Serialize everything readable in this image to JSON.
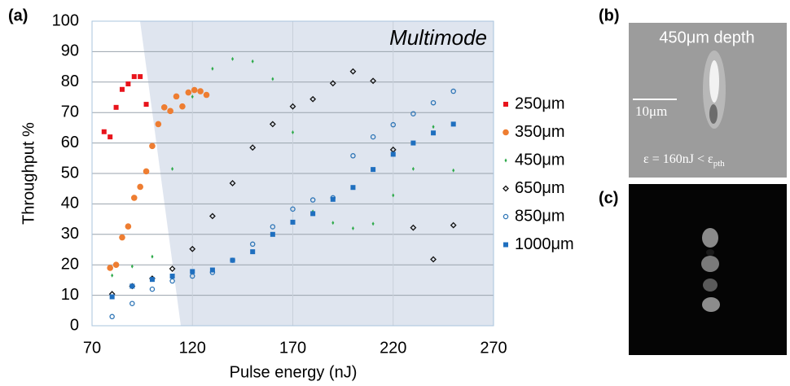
{
  "chart_data": {
    "type": "scatter",
    "panel_label": "(a)",
    "annotation": "Multimode",
    "xlabel": "Pulse energy (nJ)",
    "ylabel": "Throughput %",
    "xlim": [
      70,
      270
    ],
    "xticks": [
      70,
      120,
      170,
      220,
      270
    ],
    "ylim": [
      0,
      100
    ],
    "yticks": [
      0,
      10,
      20,
      30,
      40,
      50,
      60,
      70,
      80,
      90,
      100
    ],
    "grid": true,
    "legend": "right",
    "series": [
      {
        "name": "250μm",
        "color": "#e8141c",
        "marker": "square",
        "x": [
          76,
          79,
          82,
          85,
          88,
          91,
          94,
          97
        ],
        "values": [
          63.7,
          62,
          71.7,
          77.6,
          79.4,
          81.8,
          81.8,
          72.7
        ]
      },
      {
        "name": "350μm",
        "color": "#ee7d31",
        "marker": "circle",
        "x": [
          79,
          82,
          85,
          88,
          91,
          94,
          97,
          100,
          103,
          106,
          109,
          112,
          115,
          118,
          121,
          124,
          127
        ],
        "values": [
          19,
          20,
          29,
          32.6,
          42,
          45.6,
          50.7,
          59,
          66.2,
          71.7,
          70.5,
          75.3,
          72,
          76.6,
          77.4,
          77,
          75.8
        ]
      },
      {
        "name": "450μm",
        "color": "#2eaa4a",
        "marker": "small-diamond",
        "x": [
          80,
          90,
          100,
          110,
          120,
          130,
          140,
          150,
          160,
          170,
          180,
          190,
          200,
          210,
          220,
          230,
          240,
          250
        ],
        "values": [
          16.5,
          19.5,
          22.7,
          51.5,
          75.2,
          84.4,
          87.6,
          86.8,
          81,
          63.5,
          37.5,
          33.8,
          32,
          33.5,
          42.8,
          51.5,
          65.3,
          51
        ]
      },
      {
        "name": "650μm",
        "color": "#111111",
        "marker": "open-diamond",
        "x": [
          80,
          90,
          100,
          110,
          120,
          130,
          140,
          150,
          160,
          170,
          180,
          190,
          200,
          210,
          220,
          230,
          240,
          250
        ],
        "values": [
          10.4,
          13,
          15.5,
          18.7,
          25.2,
          36,
          46.8,
          58.5,
          66.2,
          72,
          74.4,
          79.6,
          83.5,
          80.4,
          57.8,
          32.2,
          21.8,
          33
        ]
      },
      {
        "name": "850μm",
        "color": "#2e75b6",
        "marker": "open-circle",
        "x": [
          80,
          90,
          100,
          110,
          120,
          130,
          140,
          150,
          160,
          170,
          180,
          190,
          200,
          210,
          220,
          230,
          240,
          250
        ],
        "values": [
          3,
          7.3,
          12,
          14.7,
          16.3,
          17.5,
          21.5,
          26.8,
          32.5,
          38.3,
          41.3,
          42,
          55.8,
          62,
          66,
          69.6,
          73.2,
          77
        ]
      },
      {
        "name": "1000μm",
        "color": "#1f6fbf",
        "marker": "square",
        "x": [
          80,
          90,
          100,
          110,
          120,
          130,
          140,
          150,
          160,
          170,
          180,
          190,
          200,
          210,
          220,
          230,
          240,
          250
        ],
        "values": [
          9.5,
          13,
          15.2,
          16.3,
          17.8,
          18.3,
          21.5,
          24.3,
          30,
          34,
          36.8,
          41.5,
          45.4,
          51.3,
          56.3,
          60,
          63.3,
          66.2
        ]
      }
    ]
  },
  "panels": [
    {
      "label": "(b)",
      "title": "450μm depth",
      "scale_bar": "10μm",
      "caption": "ε = 160nJ < ε",
      "caption_sub": "pth"
    },
    {
      "label": "(c)"
    }
  ]
}
